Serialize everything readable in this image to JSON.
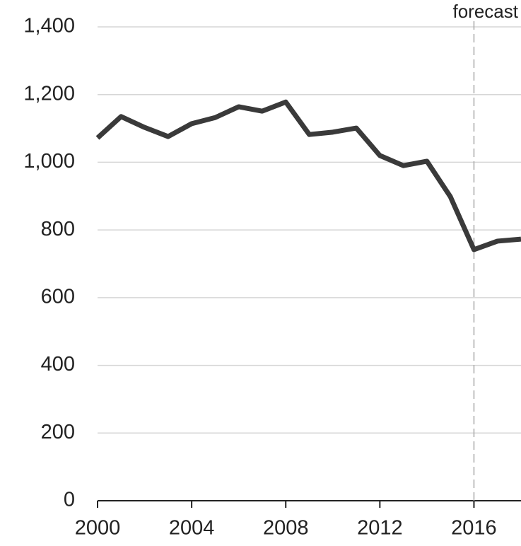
{
  "chart_data": {
    "type": "line",
    "x": [
      2000,
      2001,
      2002,
      2003,
      2004,
      2005,
      2006,
      2007,
      2008,
      2009,
      2010,
      2011,
      2012,
      2013,
      2014,
      2015,
      2016,
      2017,
      2018
    ],
    "series": [
      {
        "color": "#3a3a3a",
        "values": [
          1072,
          1135,
          1103,
          1076,
          1114,
          1132,
          1164,
          1151,
          1178,
          1082,
          1089,
          1101,
          1020,
          990,
          1003,
          898,
          742,
          767,
          773
        ]
      }
    ],
    "xlim": [
      2000,
      2018
    ],
    "xticks": [
      2000,
      2004,
      2008,
      2012,
      2016
    ],
    "ylim": [
      0,
      1400
    ],
    "yticks": [
      0,
      200,
      400,
      600,
      800,
      {
        "value": 1000,
        "label": "1,000"
      },
      {
        "value": 1200,
        "label": "1,200"
      },
      {
        "value": 1400,
        "label": "1,400"
      }
    ],
    "grid": true,
    "annotations": [
      {
        "text": "forecast",
        "x": 2016
      }
    ]
  }
}
